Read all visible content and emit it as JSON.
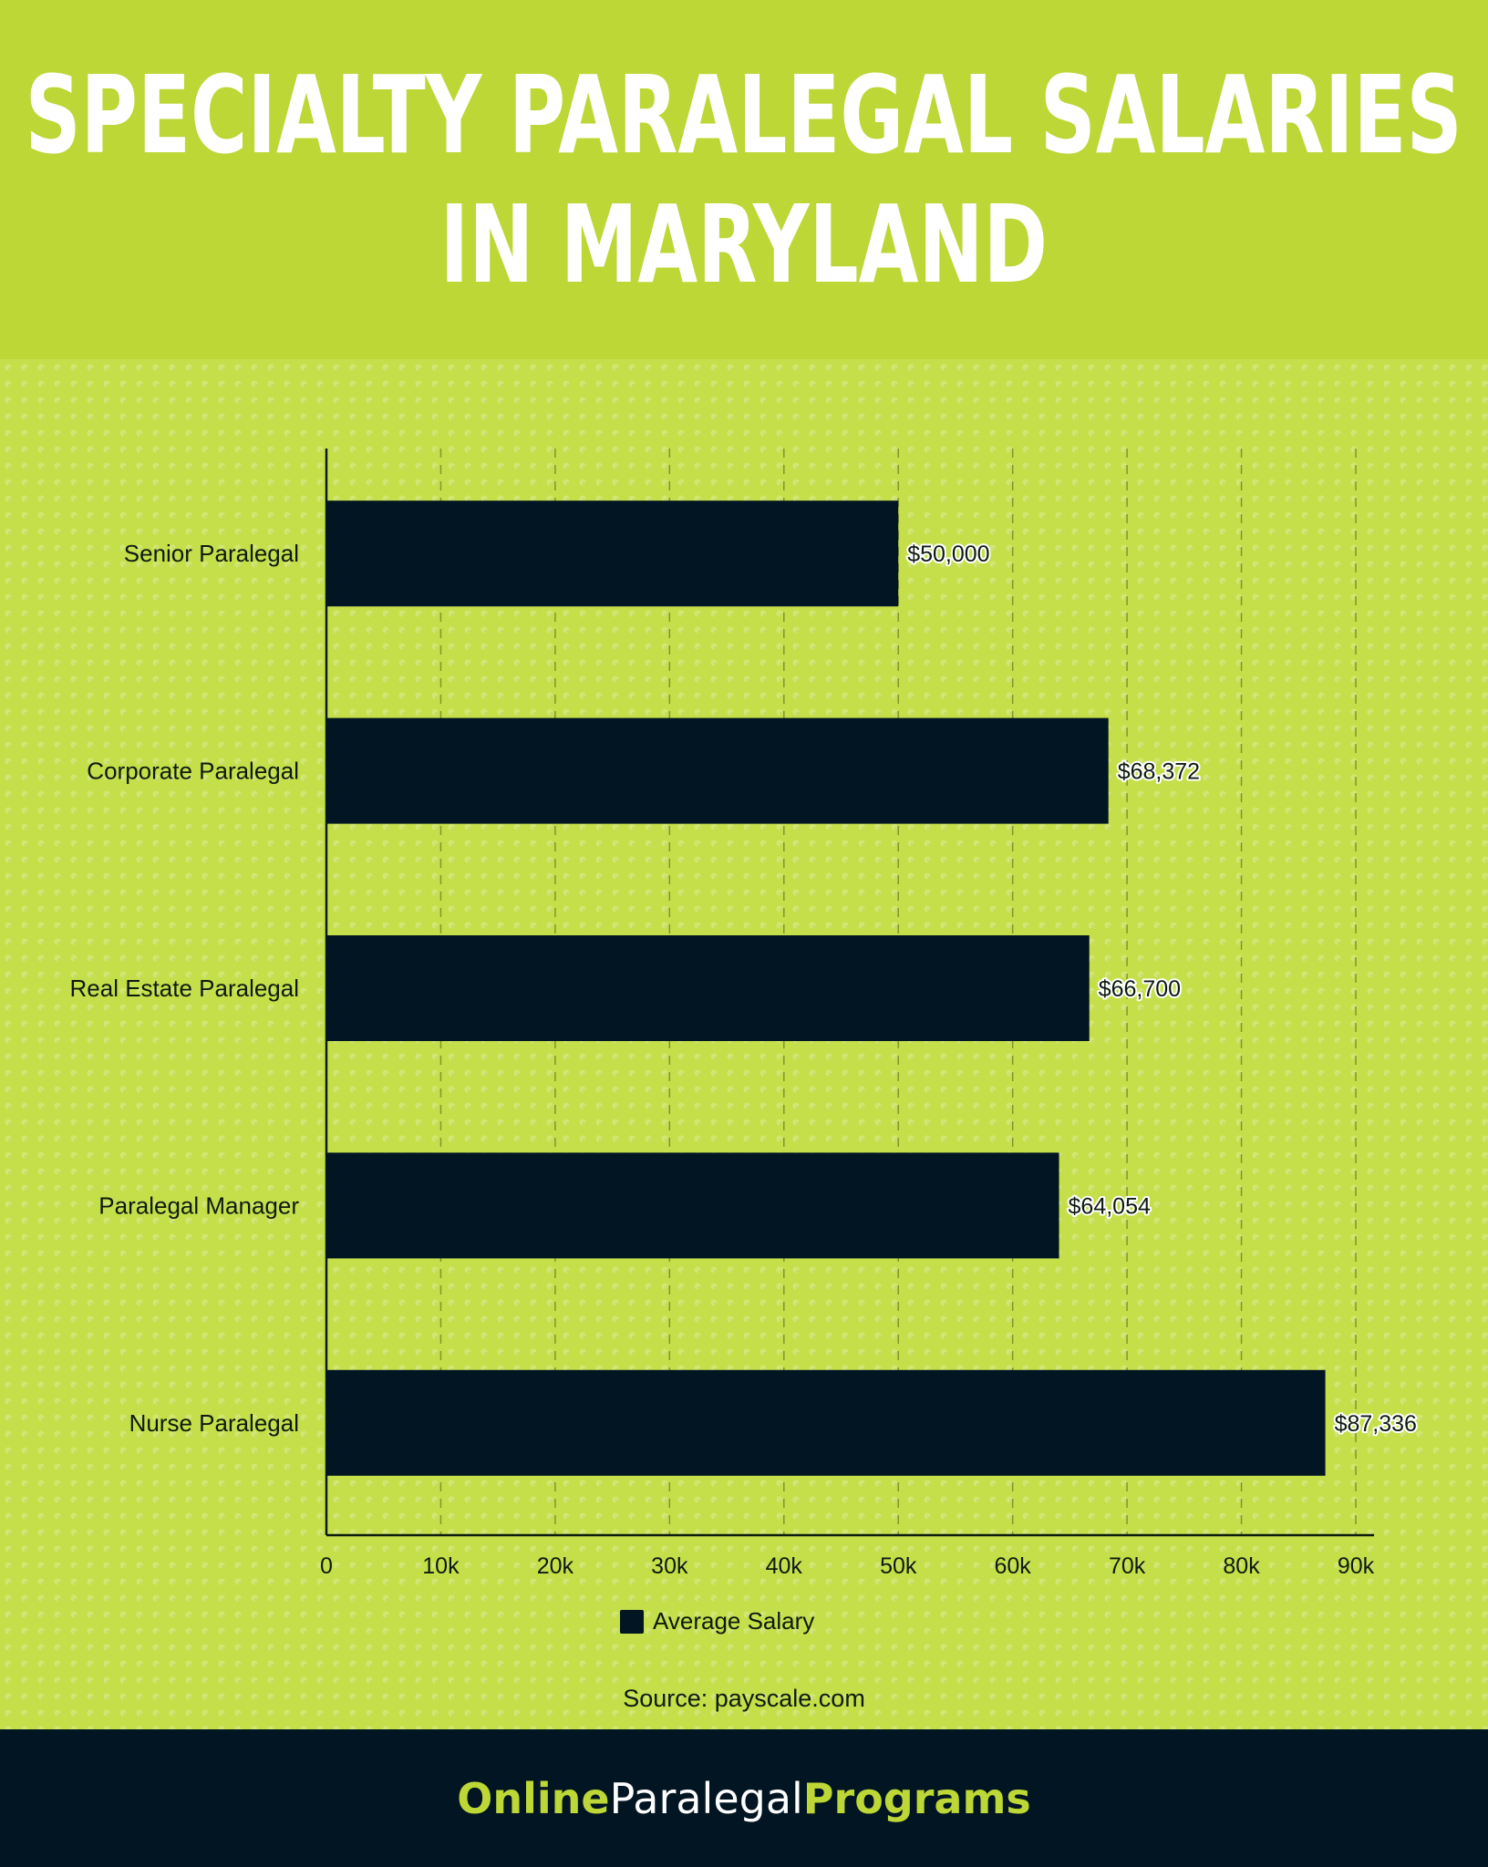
{
  "header": {
    "title_line1": "SPECIALTY PARALEGAL SALARIES",
    "title_line2": "IN MARYLAND"
  },
  "colors": {
    "accent": "#bdd736",
    "bar": "#011522",
    "footer_bg": "#011522"
  },
  "chart_data": {
    "type": "bar",
    "orientation": "horizontal",
    "categories": [
      "Senior Paralegal",
      "Corporate Paralegal",
      "Real Estate Paralegal",
      "Paralegal Manager",
      "Nurse Paralegal"
    ],
    "series": [
      {
        "name": "Average Salary",
        "values": [
          50000,
          68372,
          66700,
          64054,
          87336
        ],
        "labels": [
          "$50,000",
          "$68,372",
          "$66,700",
          "$64,054",
          "$87,336"
        ]
      }
    ],
    "xlim": [
      0,
      90000
    ],
    "xticks": [
      0,
      10000,
      20000,
      30000,
      40000,
      50000,
      60000,
      70000,
      80000,
      90000
    ],
    "xtick_labels": [
      "0",
      "10k",
      "20k",
      "30k",
      "40k",
      "50k",
      "60k",
      "70k",
      "80k",
      "90k"
    ],
    "grid": "vertical dashed",
    "legend": "bottom-center"
  },
  "legend": {
    "label": "Average Salary"
  },
  "source": "Source: payscale.com",
  "footer": {
    "brand_part1": "Online",
    "brand_part2": "Paralegal",
    "brand_part3": "Programs"
  }
}
